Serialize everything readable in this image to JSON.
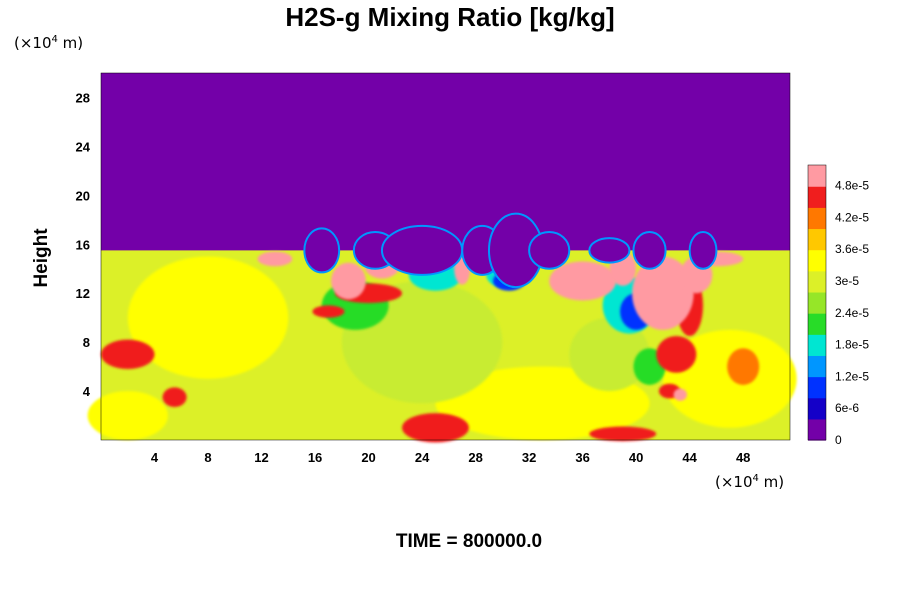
{
  "chart_data": {
    "type": "heatmap",
    "title": "H2S-g Mixing Ratio [kg/kg]",
    "xlabel": "",
    "ylabel": "Height",
    "x_unit": {
      "pre": "(×10",
      "exp": "4",
      "post": " m)"
    },
    "y_unit": {
      "pre": "(×10",
      "exp": "4",
      "post": " m)"
    },
    "xlim": [
      0,
      51.5
    ],
    "ylim": [
      0,
      30
    ],
    "x_ticks": [
      4,
      8,
      12,
      16,
      20,
      24,
      28,
      32,
      36,
      40,
      44,
      48
    ],
    "y_ticks": [
      4,
      8,
      12,
      16,
      20,
      24,
      28
    ],
    "colorbar": {
      "min": 0,
      "max": 5.2e-05,
      "tick_labels": [
        "0",
        "6e-6",
        "1.2e-5",
        "1.8e-5",
        "2.4e-5",
        "3e-5",
        "3.6e-5",
        "4.2e-5",
        "4.8e-5"
      ],
      "colors": [
        "#7300a8",
        "#1400c8",
        "#0032ff",
        "#0096ff",
        "#00e6d2",
        "#28dc28",
        "#96e628",
        "#dcf028",
        "#ffff00",
        "#ffc800",
        "#ff7800",
        "#f01e1e",
        "#ff9aa2"
      ]
    },
    "field_description": "Top layer (above ~15.5) is zero; lower layer mostly ~3.3e-5 to 3.6e-5 with high values (>4.8e-5) near cloud tops between x=16-20 and x=34-46.",
    "footer": "TIME = 800000.0"
  }
}
